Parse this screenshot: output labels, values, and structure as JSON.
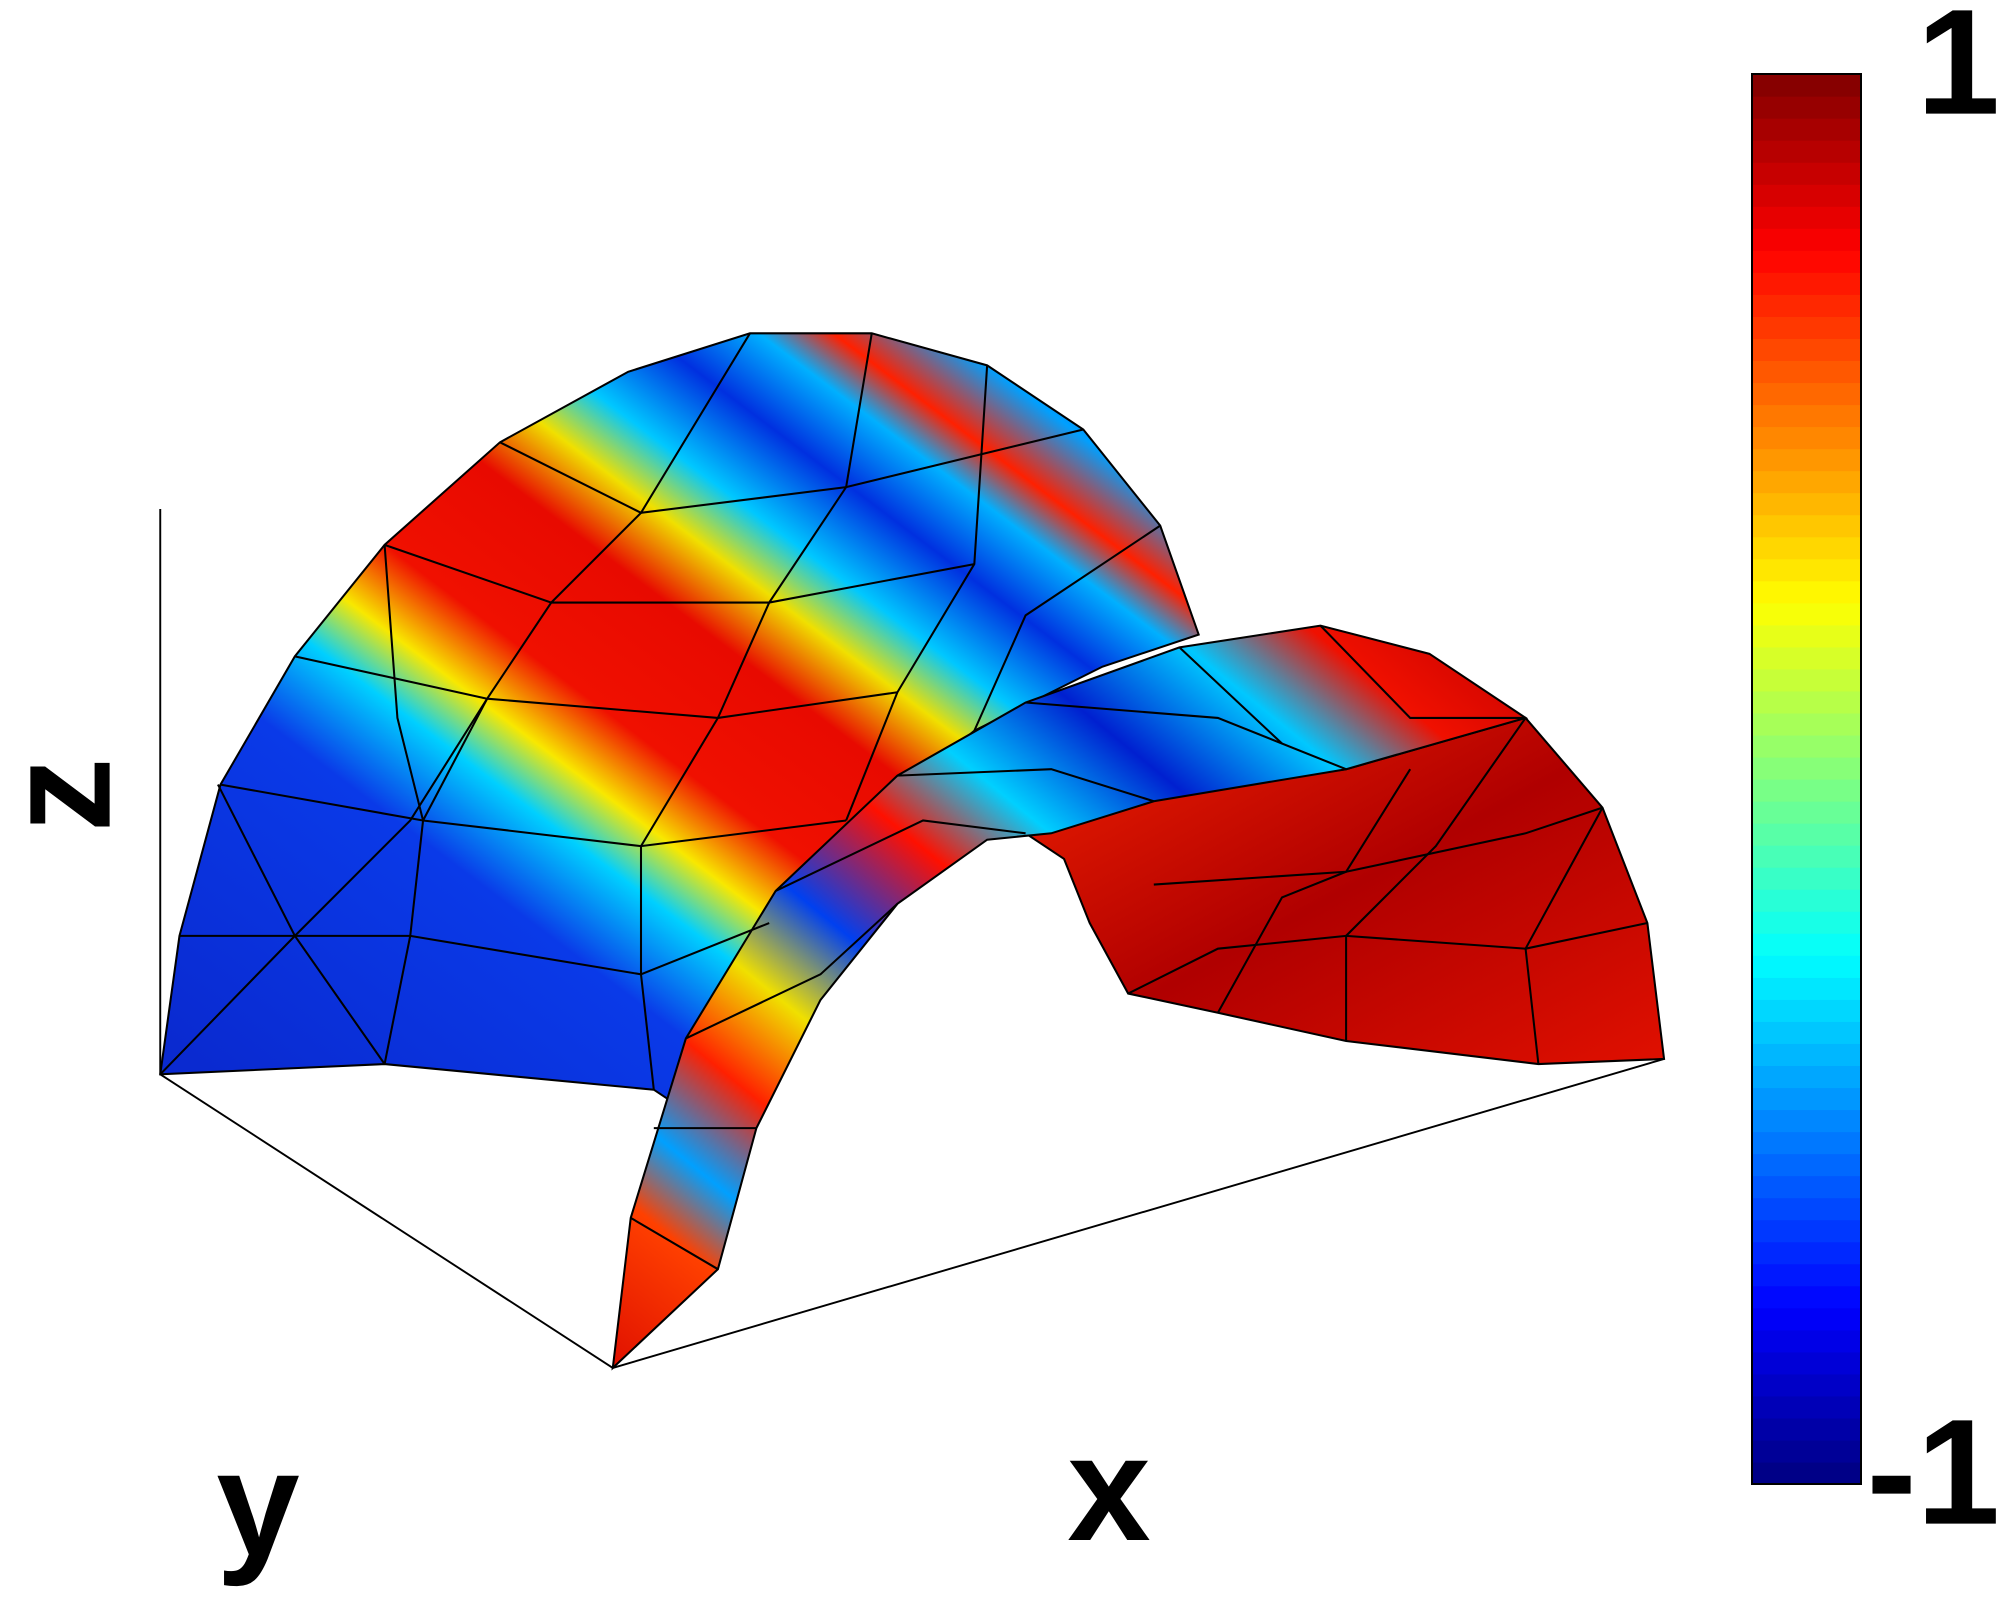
{
  "chart_data": {
    "type": "surface",
    "xlabel": "x",
    "ylabel": "y",
    "zlabel": "z",
    "colorbar": {
      "clim": [
        -1,
        1
      ],
      "ticks": [
        -1,
        1
      ],
      "colormap": "jet"
    }
  }
}
